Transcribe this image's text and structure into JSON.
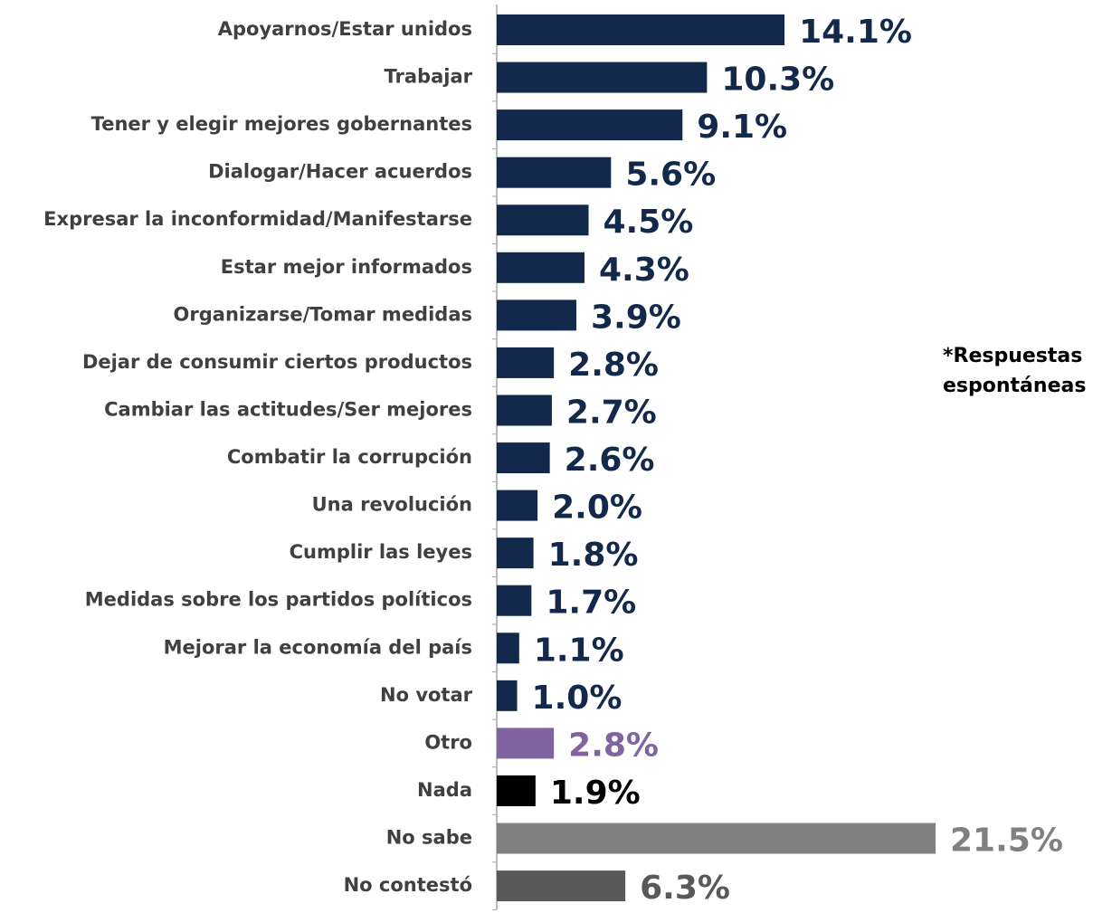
{
  "chart_data": {
    "type": "bar",
    "orientation": "horizontal",
    "categories": [
      "Apoyarnos/Estar unidos",
      "Trabajar",
      "Tener y elegir mejores gobernantes",
      "Dialogar/Hacer acuerdos",
      "Expresar la inconformidad/Manifestarse",
      "Estar mejor informados",
      "Organizarse/Tomar medidas",
      "Dejar de consumir ciertos productos",
      "Cambiar las actitudes/Ser mejores",
      "Combatir la corrupción",
      "Una revolución",
      "Cumplir las leyes",
      "Medidas sobre los partidos políticos",
      "Mejorar la economía del país",
      "No votar",
      "Otro",
      "Nada",
      "No sabe",
      "No contestó"
    ],
    "values": [
      14.1,
      10.3,
      9.1,
      5.6,
      4.5,
      4.3,
      3.9,
      2.8,
      2.7,
      2.6,
      2.0,
      1.8,
      1.7,
      1.1,
      1.0,
      2.8,
      1.9,
      21.5,
      6.3
    ],
    "value_labels": [
      "14.1%",
      "10.3%",
      "9.1%",
      "5.6%",
      "4.5%",
      "4.3%",
      "3.9%",
      "2.8%",
      "2.7%",
      "2.6%",
      "2.0%",
      "1.8%",
      "1.7%",
      "1.1%",
      "1.0%",
      "2.8%",
      "1.9%",
      "21.5%",
      "6.3%"
    ],
    "colors": [
      "#13294b",
      "#13294b",
      "#13294b",
      "#13294b",
      "#13294b",
      "#13294b",
      "#13294b",
      "#13294b",
      "#13294b",
      "#13294b",
      "#13294b",
      "#13294b",
      "#13294b",
      "#13294b",
      "#13294b",
      "#8064a2",
      "#000000",
      "#808080",
      "#595959"
    ],
    "annotation": [
      "*Respuestas",
      "espontáneas"
    ]
  }
}
